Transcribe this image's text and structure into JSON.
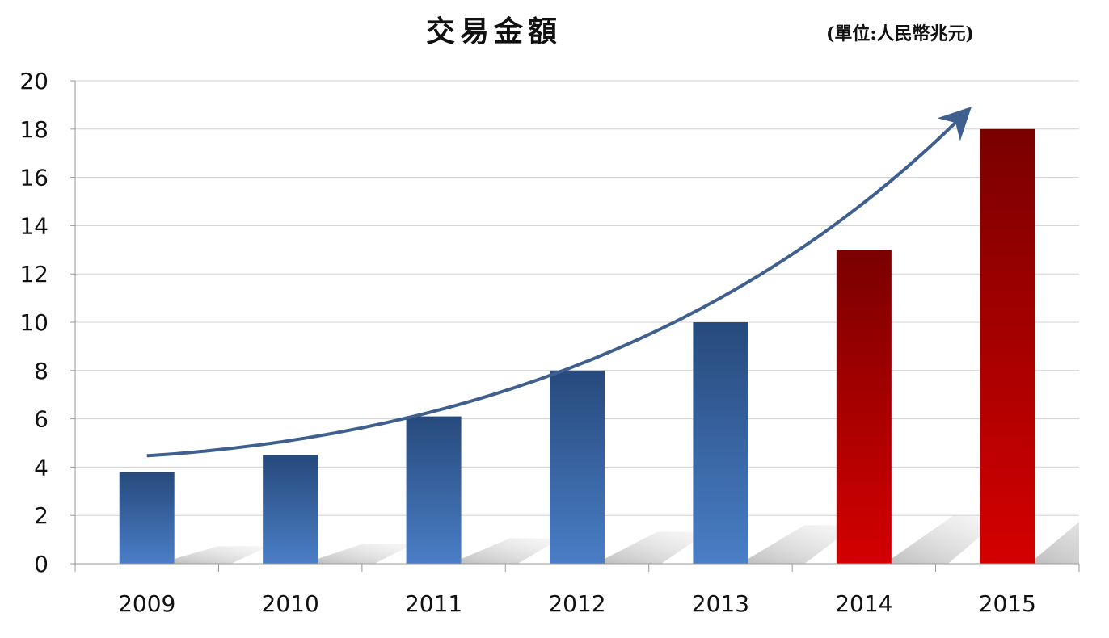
{
  "chart_data": {
    "type": "bar",
    "title": "交易金額",
    "subtitle": "(單位:人民幣兆元)",
    "categories": [
      "2009",
      "2010",
      "2011",
      "2012",
      "2013",
      "2014",
      "2015"
    ],
    "values": [
      3.8,
      4.5,
      6.1,
      8.0,
      10.0,
      13.0,
      18.0
    ],
    "ylim": [
      0,
      20
    ],
    "yticks": [
      "0",
      "2",
      "4",
      "6",
      "8",
      "10",
      "12",
      "14",
      "16",
      "18",
      "20"
    ],
    "grid": true,
    "bar_colors": [
      "#3a64a0",
      "#3a64a0",
      "#3a64a0",
      "#3a64a0",
      "#3a64a0",
      "#b00000",
      "#b00000"
    ],
    "trend_arrow_color": "#3f5f8f"
  }
}
